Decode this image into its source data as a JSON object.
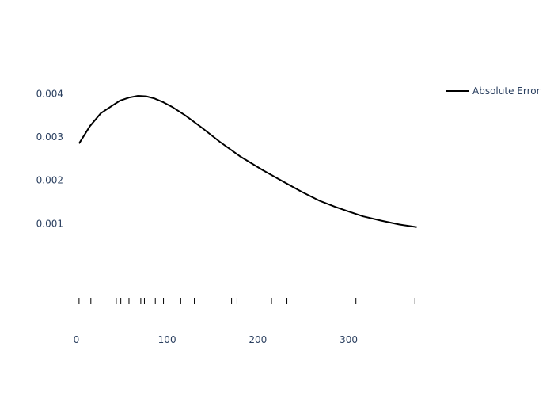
{
  "chart_data": {
    "type": "line",
    "title": "",
    "xlabel": "",
    "ylabel": "",
    "xlim": [
      -3,
      378
    ],
    "ylim": [
      -0.0006,
      0.0047
    ],
    "grid": false,
    "legend_position": "top-right",
    "x_ticks": [
      {
        "value": 0,
        "label": "0"
      },
      {
        "value": 100,
        "label": "100"
      },
      {
        "value": 200,
        "label": "200"
      },
      {
        "value": 300,
        "label": "300"
      }
    ],
    "y_ticks": [
      {
        "value": 0.001,
        "label": "0.001"
      },
      {
        "value": 0.002,
        "label": "0.002"
      },
      {
        "value": 0.003,
        "label": "0.003"
      },
      {
        "value": 0.004,
        "label": "0.004"
      }
    ],
    "series": [
      {
        "name": "Absolute Error",
        "color": "#000000",
        "x": [
          3,
          15,
          27,
          40,
          48,
          58,
          68,
          77,
          86,
          96,
          106,
          120,
          138,
          158,
          180,
          205,
          228,
          248,
          268,
          285,
          300,
          316,
          336,
          356,
          375
        ],
        "y": [
          0.00285,
          0.00325,
          0.00355,
          0.00373,
          0.00384,
          0.00391,
          0.00395,
          0.00394,
          0.00389,
          0.0038,
          0.00369,
          0.0035,
          0.00322,
          0.00289,
          0.00256,
          0.00224,
          0.00197,
          0.00174,
          0.00153,
          0.00139,
          0.00128,
          0.00117,
          0.00107,
          0.00098,
          0.00092
        ]
      }
    ],
    "rug_x": [
      3,
      14,
      16,
      44,
      49,
      58,
      71,
      75,
      87,
      96,
      115,
      130,
      171,
      177,
      215,
      232,
      308,
      373
    ]
  }
}
